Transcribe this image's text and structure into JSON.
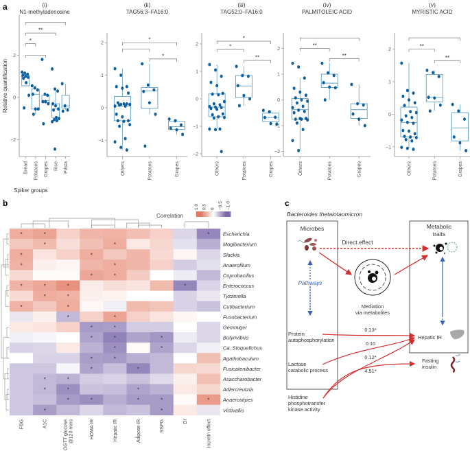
{
  "panel_labels": {
    "a": "a",
    "b": "b",
    "c": "c"
  },
  "chart_data": [
    {
      "type": "box",
      "panel": "a(i)",
      "numeral": "(i)",
      "title": "N1-methyladenosine",
      "ylabel": "Relative quantification",
      "xlabel": "Spiker groups",
      "ylim": [
        -2.8,
        3.9
      ],
      "yticks": [
        -2,
        0,
        2
      ],
      "categories": [
        "Bread",
        "Potatoes",
        "Grapes",
        "Rice",
        "Pasta"
      ],
      "boxes": [
        {
          "q1": 0.55,
          "median": 0.95,
          "q3": 1.05,
          "wlo": 0.55,
          "whi": 1.1,
          "points": [
            1.2,
            1.15,
            1.1,
            1.05,
            1.0,
            0.95,
            0.9,
            0.7,
            0.1,
            -0.5
          ]
        },
        {
          "q1": -0.55,
          "median": 0.15,
          "q3": 0.4,
          "wlo": -0.8,
          "whi": 0.55,
          "points": [
            0.55,
            0.45,
            0.35,
            0.15,
            -0.55,
            -0.55,
            -0.8
          ]
        },
        {
          "q1": -0.25,
          "median": -0.15,
          "q3": 0.1,
          "wlo": -0.3,
          "whi": 0.15,
          "points": [
            1.8,
            0.15,
            0.1,
            -0.2,
            -0.2,
            -0.3,
            -1.25
          ]
        },
        {
          "q1": -0.95,
          "median": -0.55,
          "q3": -0.3,
          "wlo": -1.2,
          "whi": 0.4,
          "points": [
            1.35,
            0.4,
            0.3,
            -0.3,
            -0.4,
            -0.55,
            -0.6,
            -0.95,
            -1.0,
            -1.05,
            -1.1,
            -1.15,
            -2.45
          ]
        },
        {
          "q1": -0.5,
          "median": -0.4,
          "q3": 0.1,
          "wlo": -0.6,
          "whi": 0.65,
          "points": [
            0.65,
            -0.4,
            -0.6,
            -0.65
          ]
        }
      ],
      "brackets": [
        {
          "from": 0,
          "to": 1,
          "level": 2.55,
          "label": "*"
        },
        {
          "from": 0,
          "to": 2,
          "level": 2.0,
          "label": ""
        },
        {
          "from": 0,
          "to": 3,
          "level": 3.05,
          "label": "**"
        },
        {
          "from": 0,
          "to": 4,
          "level": 3.55,
          "label": ""
        }
      ]
    },
    {
      "type": "box",
      "panel": "a(ii)",
      "numeral": "(ii)",
      "title": "TAG56:3–FA16:0",
      "ylim": [
        -1.5,
        2.3
      ],
      "yticks": [
        -1,
        0,
        1,
        2
      ],
      "categories": [
        "Others",
        "Potatoes",
        "Grapes"
      ],
      "boxes": [
        {
          "q1": -0.4,
          "median": 0.05,
          "q3": 0.35,
          "wlo": -1.3,
          "whi": 1.2,
          "points": [
            1.2,
            1.0,
            0.65,
            0.65,
            0.6,
            0.45,
            0.15,
            0.12,
            0.1,
            0.08,
            0.05,
            0.05,
            0.1,
            0.12,
            -0.2,
            -0.28,
            -0.4,
            -0.4,
            -0.42,
            -0.52,
            -0.57,
            -0.95,
            -1.05,
            -1.22,
            -1.3
          ]
        },
        {
          "q1": -0.02,
          "median": 0.52,
          "q3": 0.62,
          "wlo": -0.2,
          "whi": 1.35,
          "points": [
            1.35,
            0.7,
            0.55,
            0.5,
            0.15,
            -0.2,
            -1.18
          ]
        },
        {
          "q1": -0.67,
          "median": -0.58,
          "q3": -0.42,
          "wlo": -0.82,
          "whi": -0.35,
          "points": [
            -0.35,
            -0.4,
            -0.53,
            -0.63,
            -0.68,
            -0.82
          ]
        }
      ],
      "brackets": [
        {
          "from": 0,
          "to": 2,
          "level": 2.0,
          "label": "*"
        },
        {
          "from": 0,
          "to": 1,
          "level": 1.8,
          "label": ""
        },
        {
          "from": 1,
          "to": 2,
          "level": 1.5,
          "label": "*"
        }
      ]
    },
    {
      "type": "box",
      "panel": "a(iii)",
      "numeral": "(iii)",
      "title": "TAG52:0–FA16:0",
      "ylim": [
        -2.1,
        2.4
      ],
      "yticks": [
        -2,
        -1,
        0,
        1,
        2
      ],
      "categories": [
        "Others",
        "Potatoes",
        "Grapes"
      ],
      "boxes": [
        {
          "q1": -0.65,
          "median": -0.3,
          "q3": 0.18,
          "wlo": -1.1,
          "whi": 1.25,
          "points": [
            1.25,
            1.05,
            0.82,
            0.6,
            0.48,
            0.2,
            0.17,
            0.15,
            -0.1,
            -0.18,
            -0.22,
            -0.28,
            -0.3,
            -0.32,
            -0.35,
            -0.38,
            -0.55,
            -0.58,
            -0.65,
            -0.68,
            -0.7,
            -1.1,
            -1.1,
            -1.12,
            -1.92
          ]
        },
        {
          "q1": 0.05,
          "median": 0.47,
          "q3": 0.85,
          "wlo": -0.25,
          "whi": 1.18,
          "points": [
            1.18,
            0.85,
            0.82,
            0.48,
            0.12,
            0.0,
            -0.25
          ]
        },
        {
          "q1": -0.83,
          "median": -0.68,
          "q3": -0.52,
          "wlo": -0.92,
          "whi": -0.42,
          "points": [
            -0.42,
            -0.47,
            -0.67,
            -0.68,
            -0.9,
            -0.92
          ]
        }
      ],
      "brackets": [
        {
          "from": 0,
          "to": 2,
          "level": 2.1,
          "label": "*"
        },
        {
          "from": 0,
          "to": 1,
          "level": 1.8,
          "label": "*"
        },
        {
          "from": 1,
          "to": 2,
          "level": 1.4,
          "label": "**"
        }
      ]
    },
    {
      "type": "box",
      "panel": "a(iv)",
      "numeral": "(iv)",
      "title": "PALMITOLEIC ACID",
      "ylim": [
        -2.2,
        2.6
      ],
      "yticks": [
        -2,
        -1,
        0,
        1,
        2
      ],
      "categories": [
        "Others",
        "Potatoes",
        "Grapes"
      ],
      "boxes": [
        {
          "q1": -0.75,
          "median": -0.38,
          "q3": 0.05,
          "wlo": -1.95,
          "whi": 0.85,
          "points": [
            1.42,
            1.28,
            0.85,
            0.45,
            0.3,
            0.18,
            0.08,
            0.0,
            -0.05,
            -0.12,
            -0.25,
            -0.3,
            -0.4,
            -0.45,
            -0.5,
            -0.72,
            -0.72,
            -0.75,
            -0.75,
            -0.78,
            -0.9,
            -1.15,
            -1.58,
            -1.97
          ]
        },
        {
          "q1": 0.48,
          "median": 0.65,
          "q3": 1.0,
          "wlo": 0.0,
          "whi": 1.42,
          "points": [
            1.42,
            1.05,
            0.95,
            0.67,
            0.5,
            0.47,
            0.0
          ]
        },
        {
          "q1": -0.72,
          "median": -0.38,
          "q3": -0.15,
          "wlo": -1.0,
          "whi": 0.6,
          "points": [
            0.6,
            -0.15,
            -0.2,
            -0.55,
            -0.75,
            -1.0
          ]
        }
      ],
      "brackets": [
        {
          "from": 0,
          "to": 2,
          "level": 2.4,
          "label": ""
        },
        {
          "from": 0,
          "to": 1,
          "level": 2.0,
          "label": "**"
        },
        {
          "from": 1,
          "to": 2,
          "level": 1.6,
          "label": "**"
        }
      ]
    },
    {
      "type": "box",
      "panel": "a(v)",
      "numeral": "(v)",
      "title": "MYRISTIC ACID",
      "ylim": [
        -1.3,
        2.5
      ],
      "yticks": [
        -1,
        0,
        1,
        2
      ],
      "categories": [
        "Others",
        "Potatoes",
        "Grapes"
      ],
      "boxes": [
        {
          "q1": -0.7,
          "median": -0.25,
          "q3": 0.22,
          "wlo": -1.05,
          "whi": 1.57,
          "points": [
            1.57,
            0.73,
            0.65,
            0.55,
            0.44,
            0.35,
            0.27,
            0.08,
            0.05,
            -0.05,
            -0.1,
            -0.18,
            -0.25,
            -0.28,
            -0.5,
            -0.52,
            -0.6,
            -0.68,
            -0.7,
            -0.72,
            -0.78,
            -0.82,
            -1.02,
            -1.05,
            -1.08
          ]
        },
        {
          "q1": 0.38,
          "median": 0.52,
          "q3": 1.22,
          "wlo": 0.1,
          "whi": 1.35,
          "points": [
            1.35,
            1.28,
            1.16,
            0.52,
            0.5,
            0.28,
            0.1
          ]
        },
        {
          "q1": -0.82,
          "median": -0.42,
          "q3": 0.05,
          "wlo": -1.12,
          "whi": 0.3,
          "points": [
            0.3,
            0.1,
            -0.15,
            -0.7,
            -0.88,
            -1.12
          ]
        }
      ],
      "brackets": [
        {
          "from": 0,
          "to": 2,
          "level": 2.35,
          "label": ""
        },
        {
          "from": 0,
          "to": 1,
          "level": 2.0,
          "label": "**"
        },
        {
          "from": 1,
          "to": 2,
          "level": 1.65,
          "label": "**"
        }
      ]
    },
    {
      "type": "heatmap",
      "panel": "b",
      "legend_title": "Correlation",
      "legend_ticks": [
        "1.0",
        "0.5",
        "0",
        "−0.5",
        "−1.0"
      ],
      "color_range": {
        "max": 1.0,
        "min": -1.0,
        "pos_color": "#d7301f",
        "neg_color": "#3f3f9f"
      },
      "columns": [
        "FBG",
        "A1C",
        "OGTT glucose @120 mins",
        "HOMA IR",
        "Hepatic IR",
        "Adipose IR",
        "SSPG",
        "DI",
        "Incretin effect"
      ],
      "rows": [
        "Escherichia",
        "Mogibacterium",
        "Slackia",
        "Anaerofilum",
        "Coprobacillus",
        "Enterococcus",
        "Tyzzerella",
        "Cutibacterium",
        "Fusobacterium",
        "Gemmiger",
        "Butyrivibrio",
        "Ca. Stoquefichus",
        "Agathobaculum",
        "Fusicatenibacter",
        "Asaccharobacter",
        "Adlercreutzia",
        "Anaerostipes",
        "Victivallis"
      ],
      "values": [
        [
          0.45,
          0.5,
          0.25,
          0.4,
          0.42,
          0.35,
          0.25,
          -0.2,
          -0.6
        ],
        [
          0.3,
          0.38,
          0.18,
          0.35,
          0.45,
          0.12,
          0.22,
          -0.15,
          -0.4
        ],
        [
          0.45,
          0.15,
          0.25,
          0.45,
          0.3,
          0.4,
          0.2,
          0.05,
          -0.2
        ],
        [
          0.42,
          0.08,
          0.05,
          0.4,
          0.45,
          0.4,
          0.25,
          -0.25,
          -0.15
        ],
        [
          0.2,
          0.02,
          0.02,
          0.48,
          0.45,
          0.28,
          0.0,
          -0.1,
          -0.35
        ],
        [
          0.42,
          0.48,
          0.6,
          0.1,
          0.18,
          0.15,
          0.38,
          -0.6,
          -0.22
        ],
        [
          0.2,
          0.45,
          0.42,
          0.08,
          0.06,
          0.0,
          0.0,
          -0.22,
          -0.12
        ],
        [
          0.42,
          0.3,
          0.45,
          0.04,
          -0.08,
          0.38,
          0.32,
          -0.22,
          -0.3
        ],
        [
          -0.12,
          0.08,
          -0.35,
          0.25,
          0.5,
          0.25,
          0.15,
          0.05,
          0.0
        ],
        [
          0.12,
          0.15,
          0.25,
          -0.5,
          -0.48,
          -0.25,
          -0.25,
          0.0,
          -0.2
        ],
        [
          -0.08,
          -0.05,
          0.0,
          -0.45,
          -0.62,
          -0.45,
          -0.52,
          -0.1,
          -0.2
        ],
        [
          -0.22,
          -0.2,
          0.12,
          -0.38,
          -0.55,
          0.03,
          -0.45,
          -0.2,
          -0.08
        ],
        [
          0.0,
          -0.22,
          -0.22,
          -0.48,
          -0.5,
          -0.4,
          -0.35,
          0.0,
          0.35
        ],
        [
          -0.28,
          -0.28,
          -0.05,
          -0.45,
          -0.32,
          -0.6,
          -0.35,
          0.22,
          0.2
        ],
        [
          -0.28,
          -0.35,
          -0.38,
          -0.25,
          -0.22,
          -0.3,
          -0.18,
          0.08,
          0.35
        ],
        [
          -0.28,
          -0.35,
          -0.55,
          -0.3,
          -0.32,
          -0.45,
          -0.38,
          0.12,
          0.22
        ],
        [
          -0.28,
          -0.32,
          -0.5,
          -0.55,
          -0.4,
          -0.5,
          -0.5,
          0.03,
          0.55
        ],
        [
          -0.28,
          -0.48,
          -0.35,
          -0.2,
          -0.35,
          -0.3,
          -0.5,
          0.12,
          -0.12
        ]
      ],
      "significant": [
        [
          0,
          0
        ],
        [
          0,
          1
        ],
        [
          0,
          8
        ],
        [
          1,
          1
        ],
        [
          1,
          4
        ],
        [
          2,
          0
        ],
        [
          2,
          3
        ],
        [
          3,
          0
        ],
        [
          3,
          4
        ],
        [
          4,
          3
        ],
        [
          4,
          4
        ],
        [
          5,
          0
        ],
        [
          5,
          1
        ],
        [
          5,
          2
        ],
        [
          5,
          7
        ],
        [
          6,
          1
        ],
        [
          6,
          2
        ],
        [
          7,
          0
        ],
        [
          7,
          2
        ],
        [
          8,
          2
        ],
        [
          8,
          4
        ],
        [
          9,
          3
        ],
        [
          9,
          4
        ],
        [
          10,
          3
        ],
        [
          10,
          4
        ],
        [
          10,
          6
        ],
        [
          11,
          4
        ],
        [
          11,
          6
        ],
        [
          12,
          3
        ],
        [
          12,
          4
        ],
        [
          13,
          3
        ],
        [
          13,
          5
        ],
        [
          14,
          1
        ],
        [
          14,
          2
        ],
        [
          15,
          1
        ],
        [
          15,
          2
        ],
        [
          15,
          5
        ],
        [
          16,
          2
        ],
        [
          16,
          3
        ],
        [
          16,
          5
        ],
        [
          16,
          6
        ],
        [
          16,
          8
        ],
        [
          17,
          1
        ],
        [
          17,
          6
        ]
      ]
    }
  ],
  "diagram": {
    "organism": "Bacteroides thetaiotaomicron",
    "microbes_title": "Microbes",
    "traits_title": "Metabolic traits",
    "direct_effect": "Direct effect",
    "pathways": "Pathways",
    "mediation_line1": "Mediation",
    "mediation_line2": "via metabolites",
    "inputs": [
      {
        "line1": "Protein",
        "line2": "autophosphorylation",
        "line3": ""
      },
      {
        "line1": "Lactose",
        "line2": "catabolic process",
        "line3": ""
      },
      {
        "line1": "Histidine",
        "line2": "phosphotransfer",
        "line3": "kinase activity"
      }
    ],
    "effects": [
      "0.13*",
      "0.10",
      "0.12*",
      "4.51*"
    ],
    "outcomes": [
      {
        "line1": "Hepatic IR",
        "line2": "",
        "icon": "liver-icon"
      },
      {
        "line1": "Fasting",
        "line2": "insulin",
        "icon": "insulin-protein-icon"
      }
    ],
    "colors": {
      "arrow": "#d32f2f",
      "pathway": "#3a5fbf",
      "box_border": "#555555"
    }
  }
}
